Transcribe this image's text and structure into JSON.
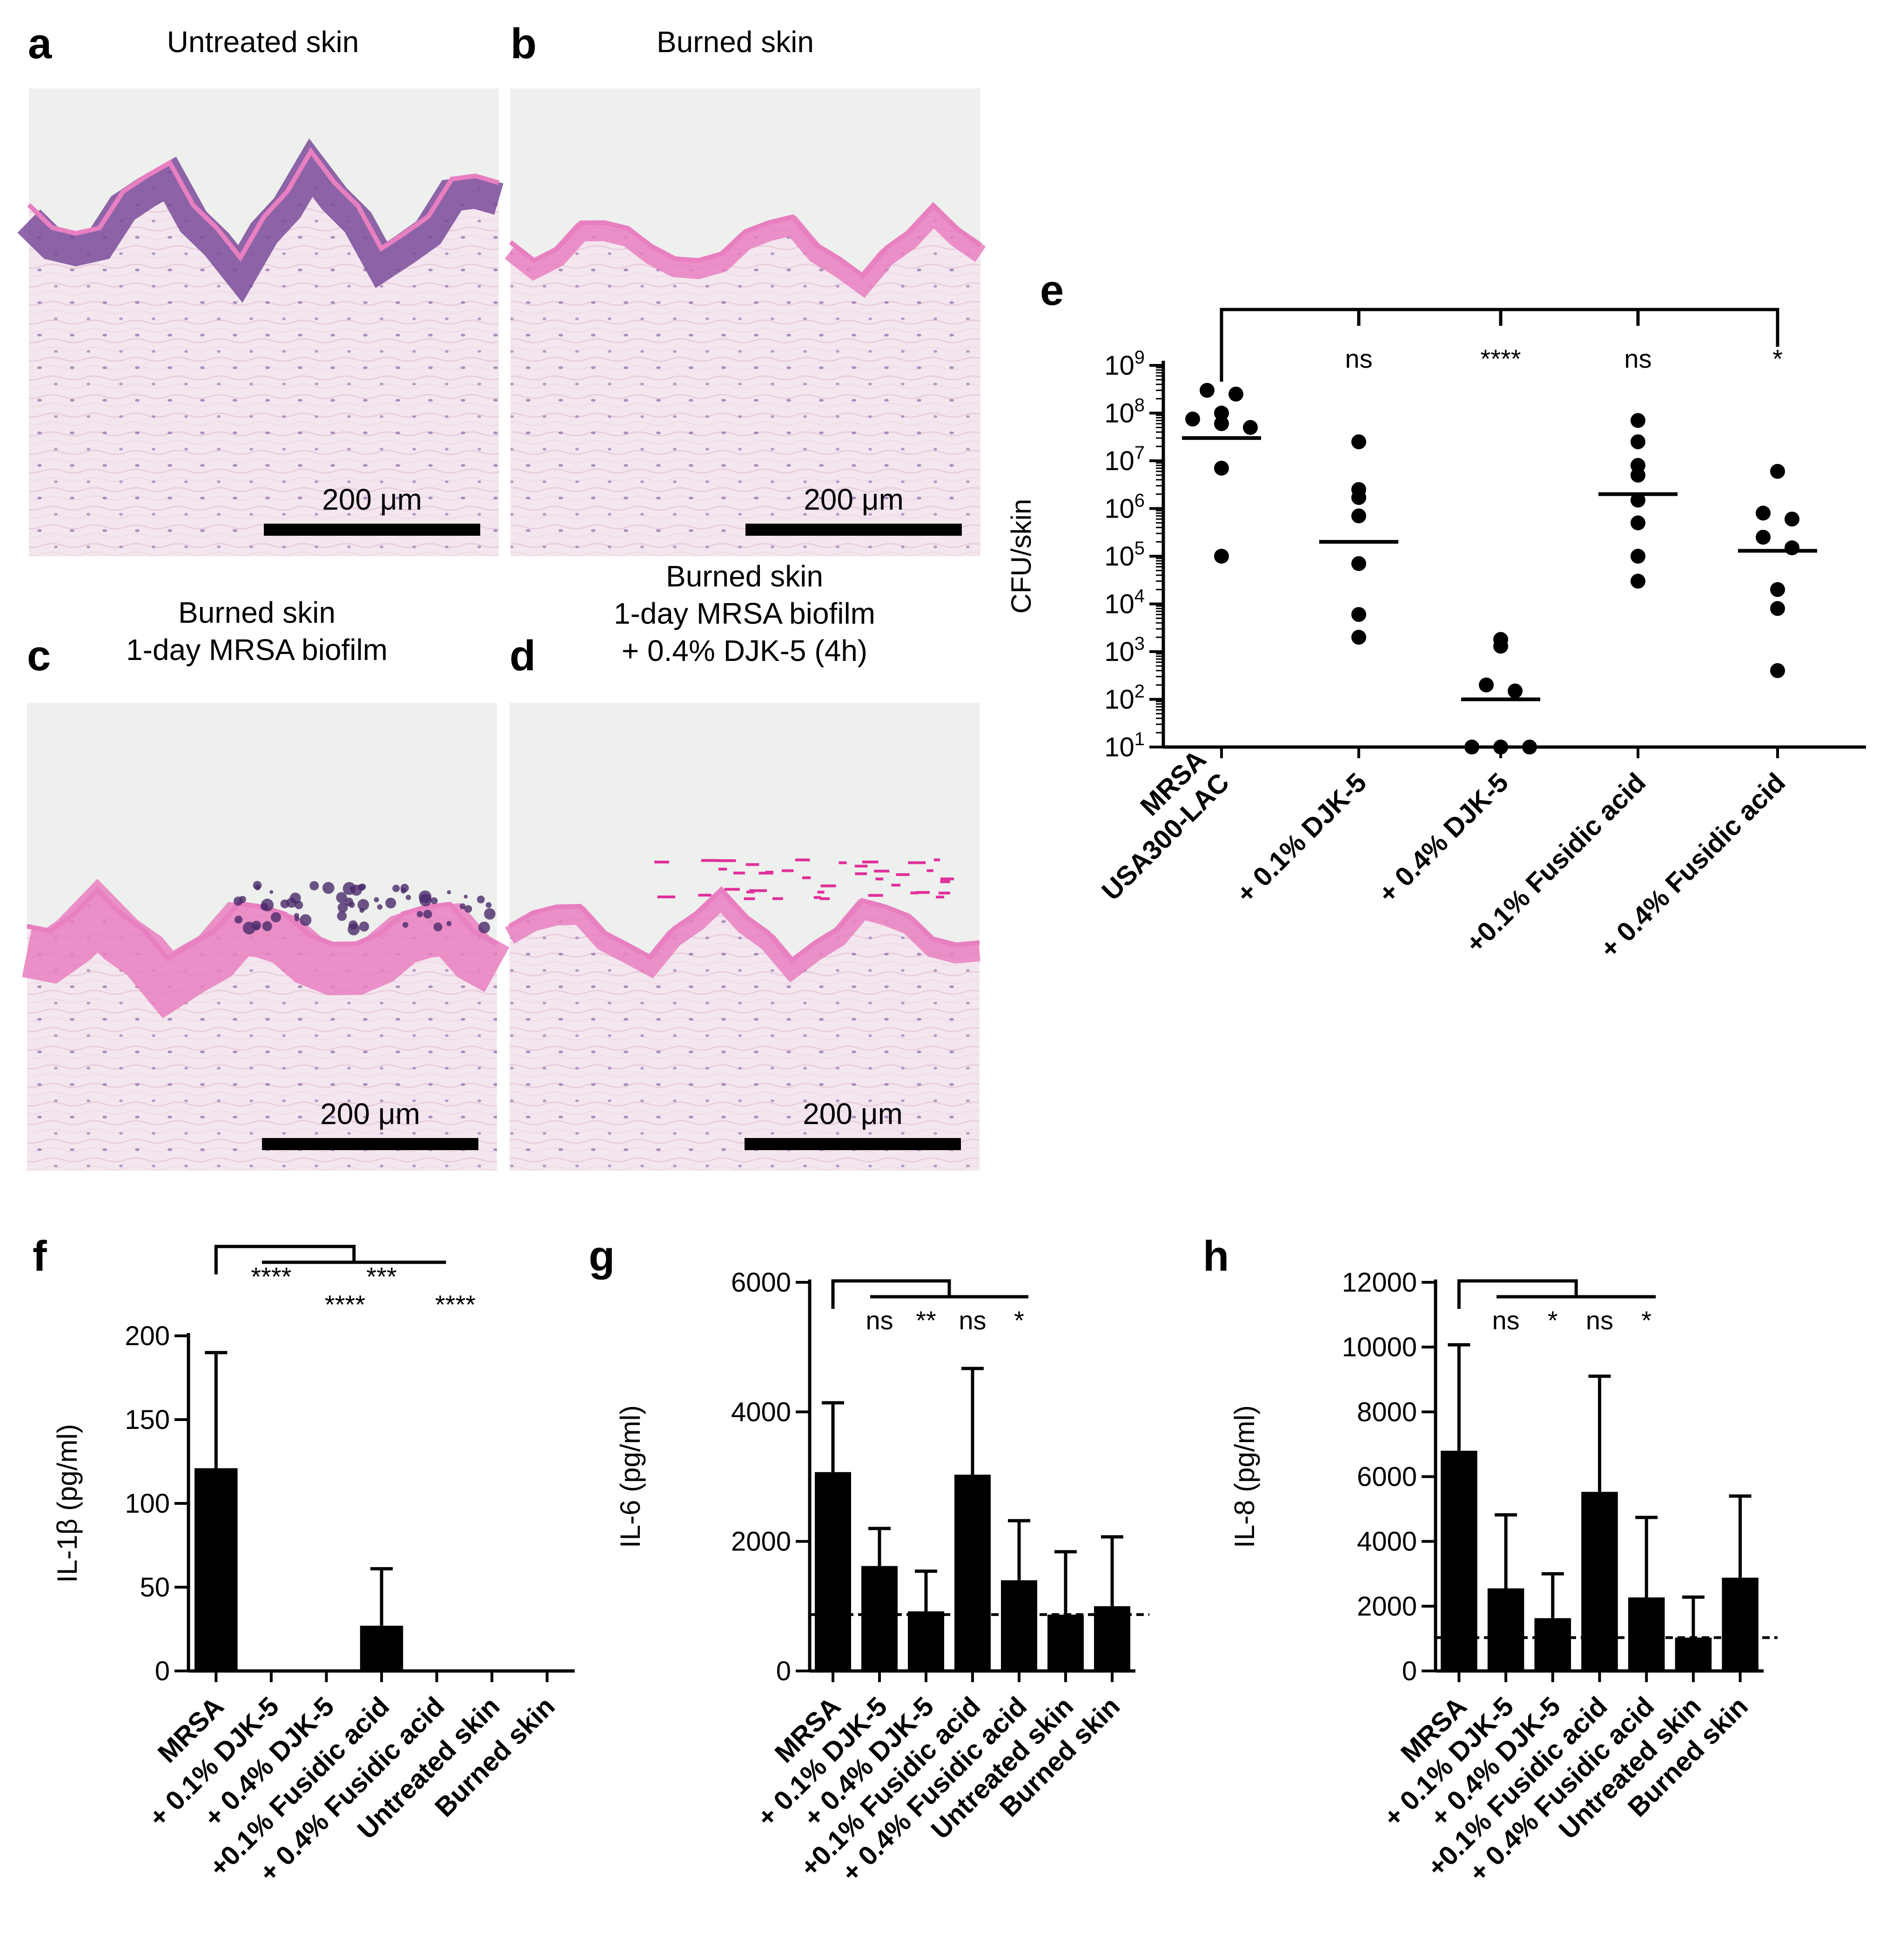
{
  "panels": [
    {
      "letter": "a",
      "title": [
        "Untreated skin"
      ],
      "scalebar": "200 μm",
      "type": "untreated"
    },
    {
      "letter": "b",
      "title": [
        "Burned skin"
      ],
      "scalebar": "200 μm",
      "type": "burned"
    },
    {
      "letter": "c",
      "title": [
        "Burned skin",
        "1-day MRSA biofilm"
      ],
      "scalebar": "200 μm",
      "type": "biofilm"
    },
    {
      "letter": "d",
      "title": [
        "Burned skin",
        "1-day MRSA biofilm",
        "+ 0.4% DJK-5 (4h)"
      ],
      "scalebar": "200 μm",
      "type": "treated"
    }
  ],
  "colors": {
    "stain_pink": "#e87fc0",
    "stain_purple": "#7a4b9a",
    "tissue_bg": "#f4e6ee",
    "slide_bg": "#eef0ee",
    "ink": "#000000"
  },
  "chart_data": [
    {
      "letter": "e",
      "type": "scatter",
      "ylabel": "CFU/skin",
      "yscale": "log",
      "ylim": [
        10,
        1000000000
      ],
      "yticks": [
        "10^1",
        "10^2",
        "10^3",
        "10^4",
        "10^5",
        "10^6",
        "10^7",
        "10^8",
        "10^9"
      ],
      "categories": [
        [
          "MRSA",
          "USA300-LAC"
        ],
        [
          "+ 0.1% DJK-5"
        ],
        [
          "+ 0.4% DJK-5"
        ],
        [
          "+0.1% Fusidic acid"
        ],
        [
          "+ 0.4% Fusidic acid"
        ]
      ],
      "points": [
        [
          300000000,
          250000000,
          100000000,
          75000000,
          60000000,
          50000000,
          7000000,
          100000
        ],
        [
          25000000,
          2500000,
          1700000,
          700000,
          70000,
          6000,
          2000
        ],
        [
          1800,
          1300,
          200,
          150,
          10,
          10,
          10
        ],
        [
          70000000,
          25000000,
          8000000,
          5000000,
          1500000,
          500000,
          100000,
          30000
        ],
        [
          6000000,
          800000,
          600000,
          250000,
          150000,
          20000,
          8000,
          400
        ]
      ],
      "medians": [
        30000000,
        200000,
        100,
        2000000,
        130000
      ],
      "significance": [
        "",
        "ns",
        "****",
        "ns",
        "*"
      ]
    },
    {
      "letter": "f",
      "type": "bar",
      "ylabel": "IL-1β (pg/ml)",
      "ylim": [
        0,
        200
      ],
      "yticks": [
        0,
        50,
        100,
        150,
        200
      ],
      "categories": [
        "MRSA",
        "+ 0.1% DJK-5",
        "+ 0.4% DJK-5",
        "+0.1% Fusidic acid",
        "+ 0.4% Fusidic acid",
        "Untreated skin",
        "Burned skin"
      ],
      "values": [
        121,
        0,
        0,
        27,
        0,
        0,
        0
      ],
      "errors": [
        69,
        0,
        0,
        34,
        0,
        0,
        0
      ],
      "significance": [
        "",
        "****",
        "****",
        "***",
        "****",
        "",
        ""
      ]
    },
    {
      "letter": "g",
      "type": "bar",
      "ylabel": "IL-6 (pg/ml)",
      "ylim": [
        0,
        6000
      ],
      "yticks": [
        0,
        2000,
        4000,
        6000
      ],
      "categories": [
        "MRSA",
        "+ 0.1% DJK-5",
        "+ 0.4% DJK-5",
        "+0.1% Fusidic acid",
        "+ 0.4% Fusidic acid",
        "Untreated skin",
        "Burned skin"
      ],
      "values": [
        3070,
        1620,
        920,
        3030,
        1400,
        870,
        1000
      ],
      "errors": [
        1070,
        580,
        620,
        1640,
        920,
        970,
        1070
      ],
      "baseline": 870,
      "significance": [
        "",
        "ns",
        "**",
        "ns",
        "*",
        "",
        ""
      ]
    },
    {
      "letter": "h",
      "type": "bar",
      "ylabel": "IL-8 (pg/ml)",
      "ylim": [
        0,
        12000
      ],
      "yticks": [
        0,
        2000,
        4000,
        6000,
        8000,
        10000,
        12000
      ],
      "categories": [
        "MRSA",
        "+ 0.1% DJK-5",
        "+ 0.4% DJK-5",
        "+0.1% Fusidic acid",
        "+ 0.4% Fusidic acid",
        "Untreated skin",
        "Burned skin"
      ],
      "values": [
        6800,
        2550,
        1630,
        5530,
        2270,
        1030,
        2880
      ],
      "errors": [
        3270,
        2270,
        1370,
        3570,
        2470,
        1250,
        2520
      ],
      "baseline": 1030,
      "significance": [
        "",
        "ns",
        "*",
        "ns",
        "*",
        "",
        ""
      ]
    }
  ]
}
